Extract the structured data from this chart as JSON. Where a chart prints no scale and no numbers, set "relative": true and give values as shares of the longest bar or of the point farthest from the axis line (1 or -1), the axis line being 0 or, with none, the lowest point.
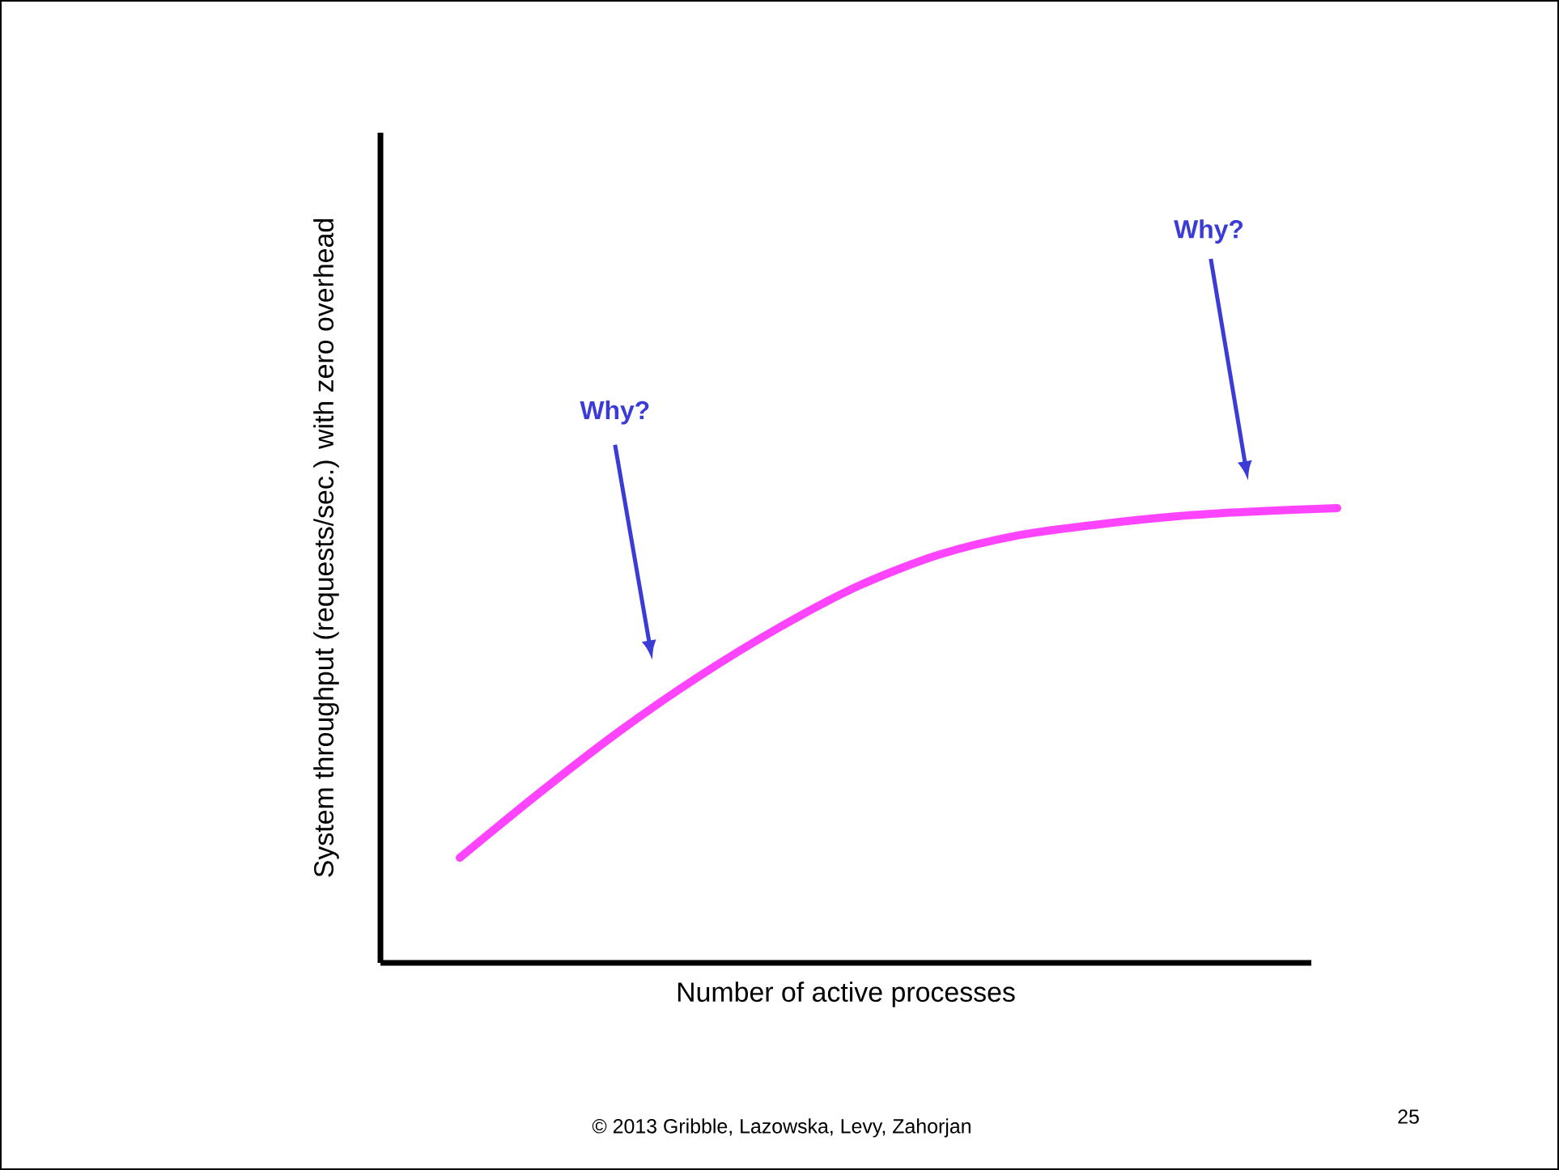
{
  "chart_data": {
    "type": "line",
    "relative": true,
    "xlabel": "Number of active processes",
    "ylabel": "System throughput (requests/sec.) with zero overhead",
    "categories": [
      null,
      null,
      null,
      null,
      null,
      null,
      null,
      null,
      null,
      null,
      null,
      null
    ],
    "series": [
      {
        "color": "#ff44ff",
        "values": [
          0.231,
          0.374,
          0.509,
          0.63,
          0.737,
          0.829,
          0.897,
          0.94,
          0.964,
          0.982,
          0.993,
          1
        ]
      }
    ],
    "annotations": [
      "Why?",
      "Why?",
      "© 2013 Gribble, Lazowska, Levy, Zahorjan",
      "25"
    ]
  }
}
